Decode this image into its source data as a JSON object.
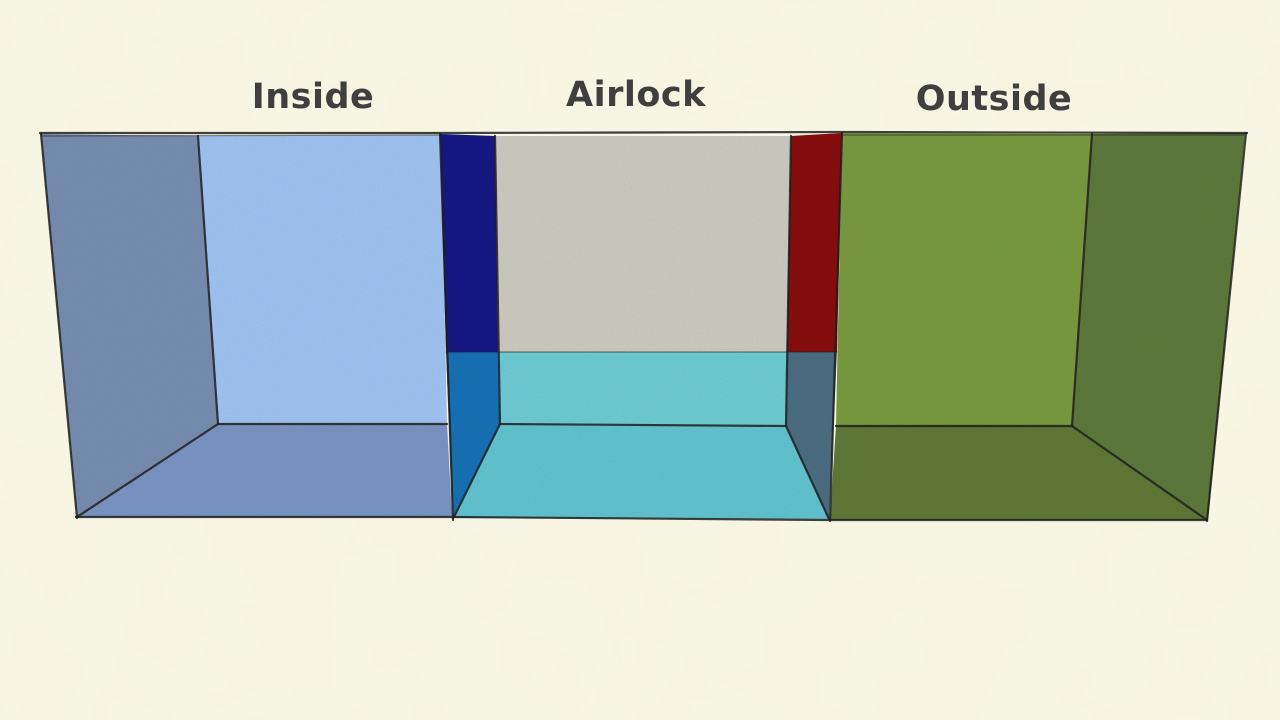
{
  "labels": {
    "inside": "Inside",
    "airlock": "Airlock",
    "outside": "Outside"
  },
  "colors": {
    "background": "#f7f5e1",
    "inside_back_wall": "#a3c6f5",
    "inside_side_wall": "#7990b4",
    "inside_floor": "#7d97c6",
    "airlock_back_wall": "#cfcdc3",
    "airlock_water": "#6fcfd6",
    "airlock_floor": "#63c6d3",
    "airlock_left_door": "#1d1a86",
    "airlock_left_door_flooded": "#1b73b8",
    "airlock_right_door": "#8a1917",
    "airlock_right_door_flooded": "#4d6f82",
    "outside_back_wall": "#7c9c42",
    "outside_side_wall": "#617a3e",
    "outside_floor": "#627a38",
    "label_text": "#3f3f3f"
  },
  "airlock_water_level": 0.44
}
